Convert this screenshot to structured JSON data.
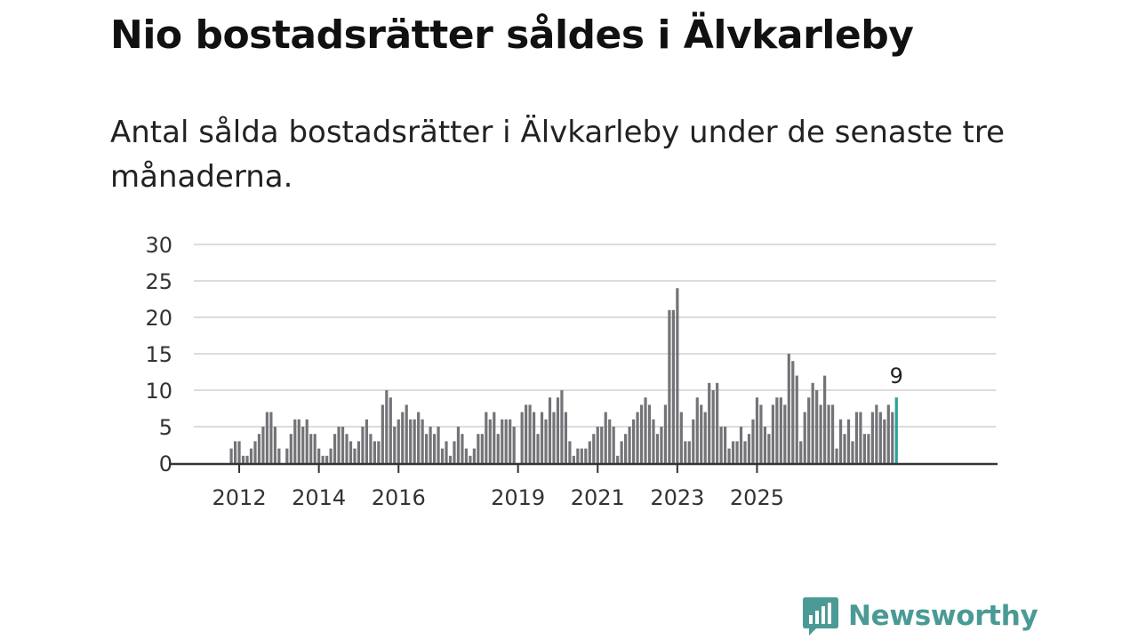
{
  "header": {
    "title": "Nio bostadsrätter såldes i Älvkarleby",
    "subtitle": "Antal sålda bostadsrätter i Älvkarleby under de senaste tre månaderna."
  },
  "chart_data": {
    "type": "bar",
    "title": "Nio bostadsrätter såldes i Älvkarleby",
    "subtitle": "Antal sålda bostadsrätter i Älvkarleby under de senaste tre månaderna.",
    "xlabel": "",
    "ylabel": "",
    "ylim": [
      0,
      30
    ],
    "yticks": [
      0,
      5,
      10,
      15,
      20,
      25,
      30
    ],
    "xticks": [
      {
        "label": "2012",
        "index": 2
      },
      {
        "label": "2014",
        "index": 22
      },
      {
        "label": "2016",
        "index": 42
      },
      {
        "label": "2019",
        "index": 72
      },
      {
        "label": "2021",
        "index": 92
      },
      {
        "label": "2023",
        "index": 112
      },
      {
        "label": "2025",
        "index": 132
      }
    ],
    "grid": true,
    "bar_color": "#747378",
    "highlight_color": "#2aa198",
    "values": [
      2,
      3,
      3,
      1,
      1,
      2,
      3,
      4,
      5,
      7,
      7,
      5,
      2,
      0,
      2,
      4,
      6,
      6,
      5,
      6,
      4,
      4,
      2,
      1,
      1,
      2,
      4,
      5,
      5,
      4,
      3,
      2,
      3,
      5,
      6,
      4,
      3,
      3,
      8,
      10,
      9,
      5,
      6,
      7,
      8,
      6,
      6,
      7,
      6,
      4,
      5,
      4,
      5,
      2,
      3,
      1,
      3,
      5,
      4,
      2,
      1,
      2,
      4,
      4,
      7,
      6,
      7,
      4,
      6,
      6,
      6,
      5,
      0,
      7,
      8,
      8,
      7,
      4,
      7,
      6,
      9,
      7,
      9,
      10,
      7,
      3,
      1,
      2,
      2,
      2,
      3,
      4,
      5,
      5,
      7,
      6,
      5,
      1,
      3,
      4,
      5,
      6,
      7,
      8,
      9,
      8,
      6,
      4,
      5,
      8,
      21,
      21,
      24,
      7,
      3,
      3,
      6,
      9,
      8,
      7,
      11,
      10,
      11,
      5,
      5,
      2,
      3,
      3,
      5,
      3,
      4,
      6,
      9,
      8,
      5,
      4,
      8,
      9,
      9,
      8,
      15,
      14,
      12,
      3,
      7,
      9,
      11,
      10,
      8,
      12,
      8,
      8,
      2,
      6,
      4,
      6,
      3,
      7,
      7,
      4,
      4,
      7,
      8,
      7,
      6,
      8,
      7,
      9
    ],
    "highlight_last": true,
    "annotation": {
      "label": "9"
    }
  },
  "brand": {
    "name": "Newsworthy",
    "color": "#4a9a95"
  }
}
